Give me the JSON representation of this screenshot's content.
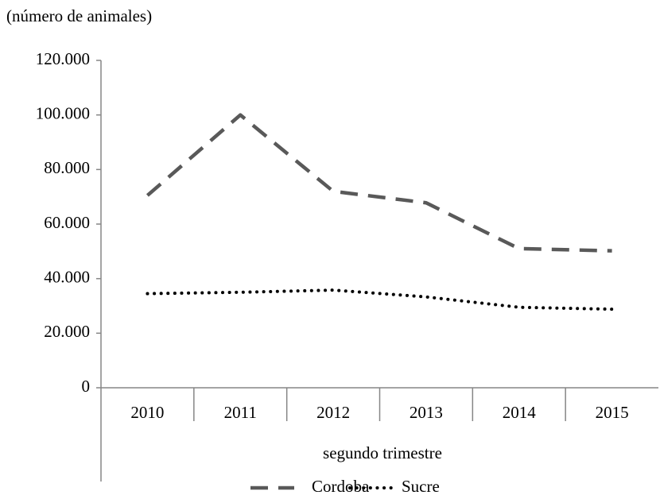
{
  "chart_data": {
    "type": "line",
    "y_label": "(número  de animales)",
    "x_label": "segundo trimestre",
    "categories": [
      "2010",
      "2011",
      "2012",
      "2013",
      "2014",
      "2015"
    ],
    "series": [
      {
        "name": "Cordoba",
        "color": "#595959",
        "style": "dashed",
        "values": [
          70500,
          100000,
          72000,
          67800,
          51000,
          50200
        ]
      },
      {
        "name": "Sucre",
        "color": "#000000",
        "style": "dotted",
        "values": [
          34500,
          35000,
          35800,
          33300,
          29500,
          28800
        ]
      }
    ],
    "ylim": [
      0,
      120000
    ],
    "yticks": [
      0,
      {
        "value": 20000,
        "label": "20.000"
      },
      {
        "value": 40000,
        "label": "40.000"
      },
      {
        "value": 60000,
        "label": "60.000"
      },
      {
        "value": 80000,
        "label": "80.000"
      },
      {
        "value": 100000,
        "label": "100.000"
      },
      {
        "value": 120000,
        "label": "120.000"
      }
    ],
    "grid": false,
    "legend": "bottom"
  }
}
